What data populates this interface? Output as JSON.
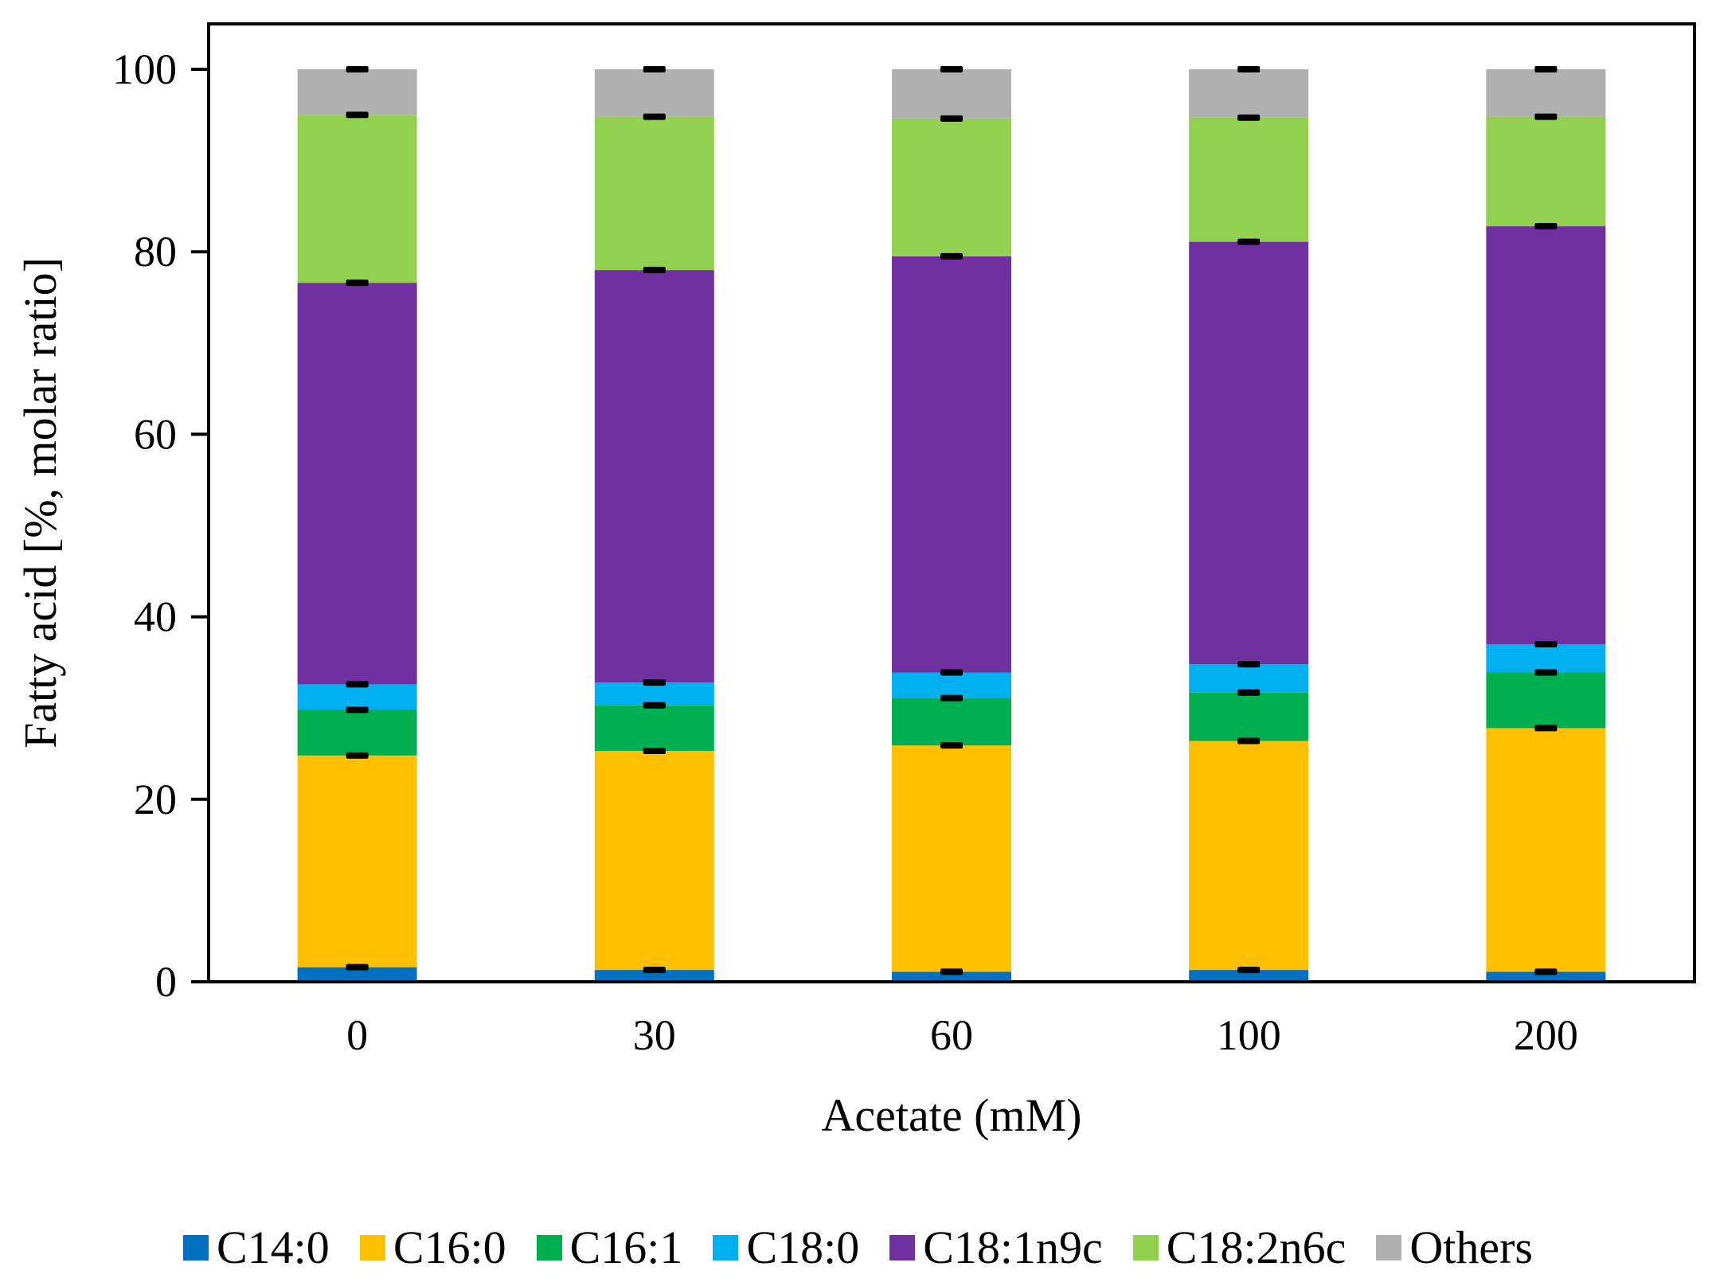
{
  "chart_data": {
    "type": "bar",
    "stacked": true,
    "title": "",
    "xlabel": "Acetate (mM)",
    "ylabel": "Fatty acid [%, molar ratio]",
    "ylim": [
      0,
      100
    ],
    "yticks": [
      0,
      20,
      40,
      60,
      80,
      100
    ],
    "grid": false,
    "legend_position": "bottom",
    "categories": [
      "0",
      "30",
      "60",
      "100",
      "200"
    ],
    "series": [
      {
        "name": "C14:0",
        "color": "#0070C0",
        "values": [
          1.6,
          1.3,
          1.1,
          1.3,
          1.1
        ]
      },
      {
        "name": "C16:0",
        "color": "#FFC000",
        "values": [
          23.2,
          24.0,
          24.8,
          25.1,
          26.7
        ]
      },
      {
        "name": "C16:1",
        "color": "#00B050",
        "values": [
          5.0,
          5.0,
          5.2,
          5.3,
          6.1
        ]
      },
      {
        "name": "C18:0",
        "color": "#00B0F0",
        "values": [
          2.8,
          2.5,
          2.8,
          3.1,
          3.1
        ]
      },
      {
        "name": "C18:1n9c",
        "color": "#7030A0",
        "values": [
          44.0,
          45.2,
          45.6,
          46.3,
          45.8
        ]
      },
      {
        "name": "C18:2n6c",
        "color": "#92D050",
        "values": [
          18.4,
          16.8,
          15.1,
          13.6,
          12.0
        ]
      },
      {
        "name": "Others",
        "color": "#B0B0B0",
        "values": [
          5.0,
          5.2,
          5.4,
          5.3,
          5.2
        ]
      }
    ]
  }
}
